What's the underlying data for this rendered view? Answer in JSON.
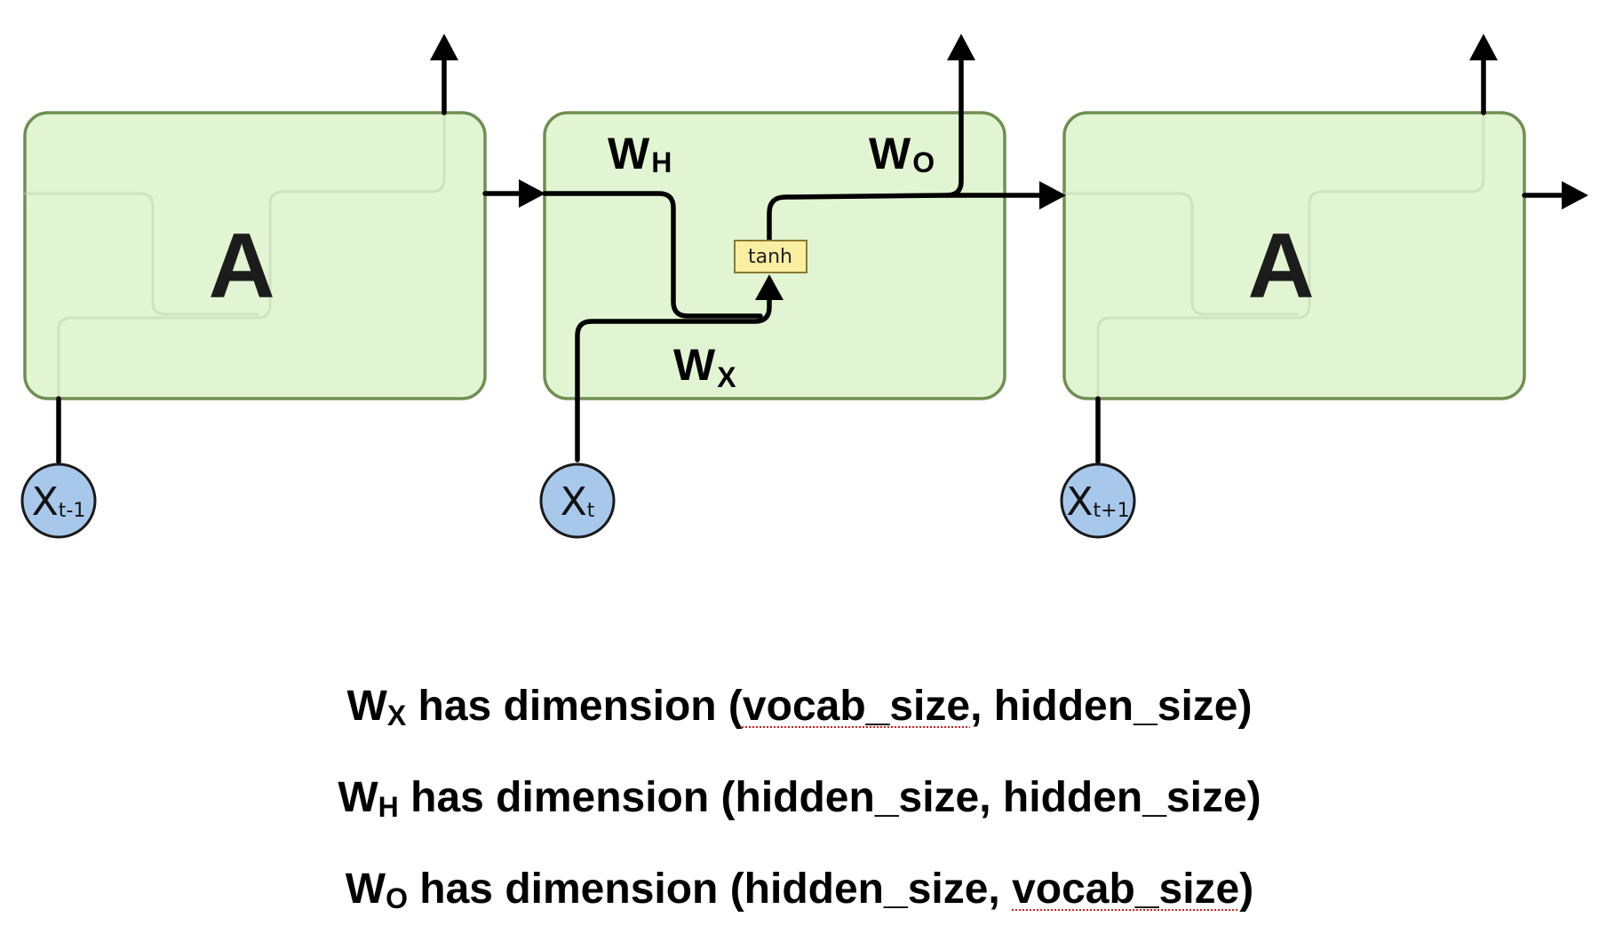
{
  "colors": {
    "cell_fill": "#e2f5d2",
    "cell_stroke": "#6f8f52",
    "ghost_line": "#b9ccad",
    "node_fill": "#a8c8eb",
    "tanh_fill": "#faeea2",
    "tanh_stroke": "#8a7a32",
    "spellcheck_underline": "#d62020"
  },
  "cells": [
    {
      "label": "A"
    },
    {
      "label": ""
    },
    {
      "label": "A"
    }
  ],
  "weights": {
    "h": {
      "main": "W",
      "sub": "H"
    },
    "o": {
      "main": "W",
      "sub": "O"
    },
    "x": {
      "main": "W",
      "sub": "X"
    }
  },
  "activation": "tanh",
  "inputs": [
    {
      "main": "X",
      "sub": "t-1"
    },
    {
      "main": "X",
      "sub": "t"
    },
    {
      "main": "X",
      "sub": "t+1"
    }
  ],
  "captions": [
    {
      "w": "W",
      "sub": "X",
      "pre": " has dimension (",
      "marked": "vocab_size",
      "mid": ", hidden_size",
      "post": ")"
    },
    {
      "w": "W",
      "sub": "H",
      "text": " has dimension (hidden_size, hidden_size)"
    },
    {
      "w": "W",
      "sub": "O",
      "pre": " has dimension (hidden_size, ",
      "marked": "vocab_size",
      "post": ")"
    }
  ]
}
